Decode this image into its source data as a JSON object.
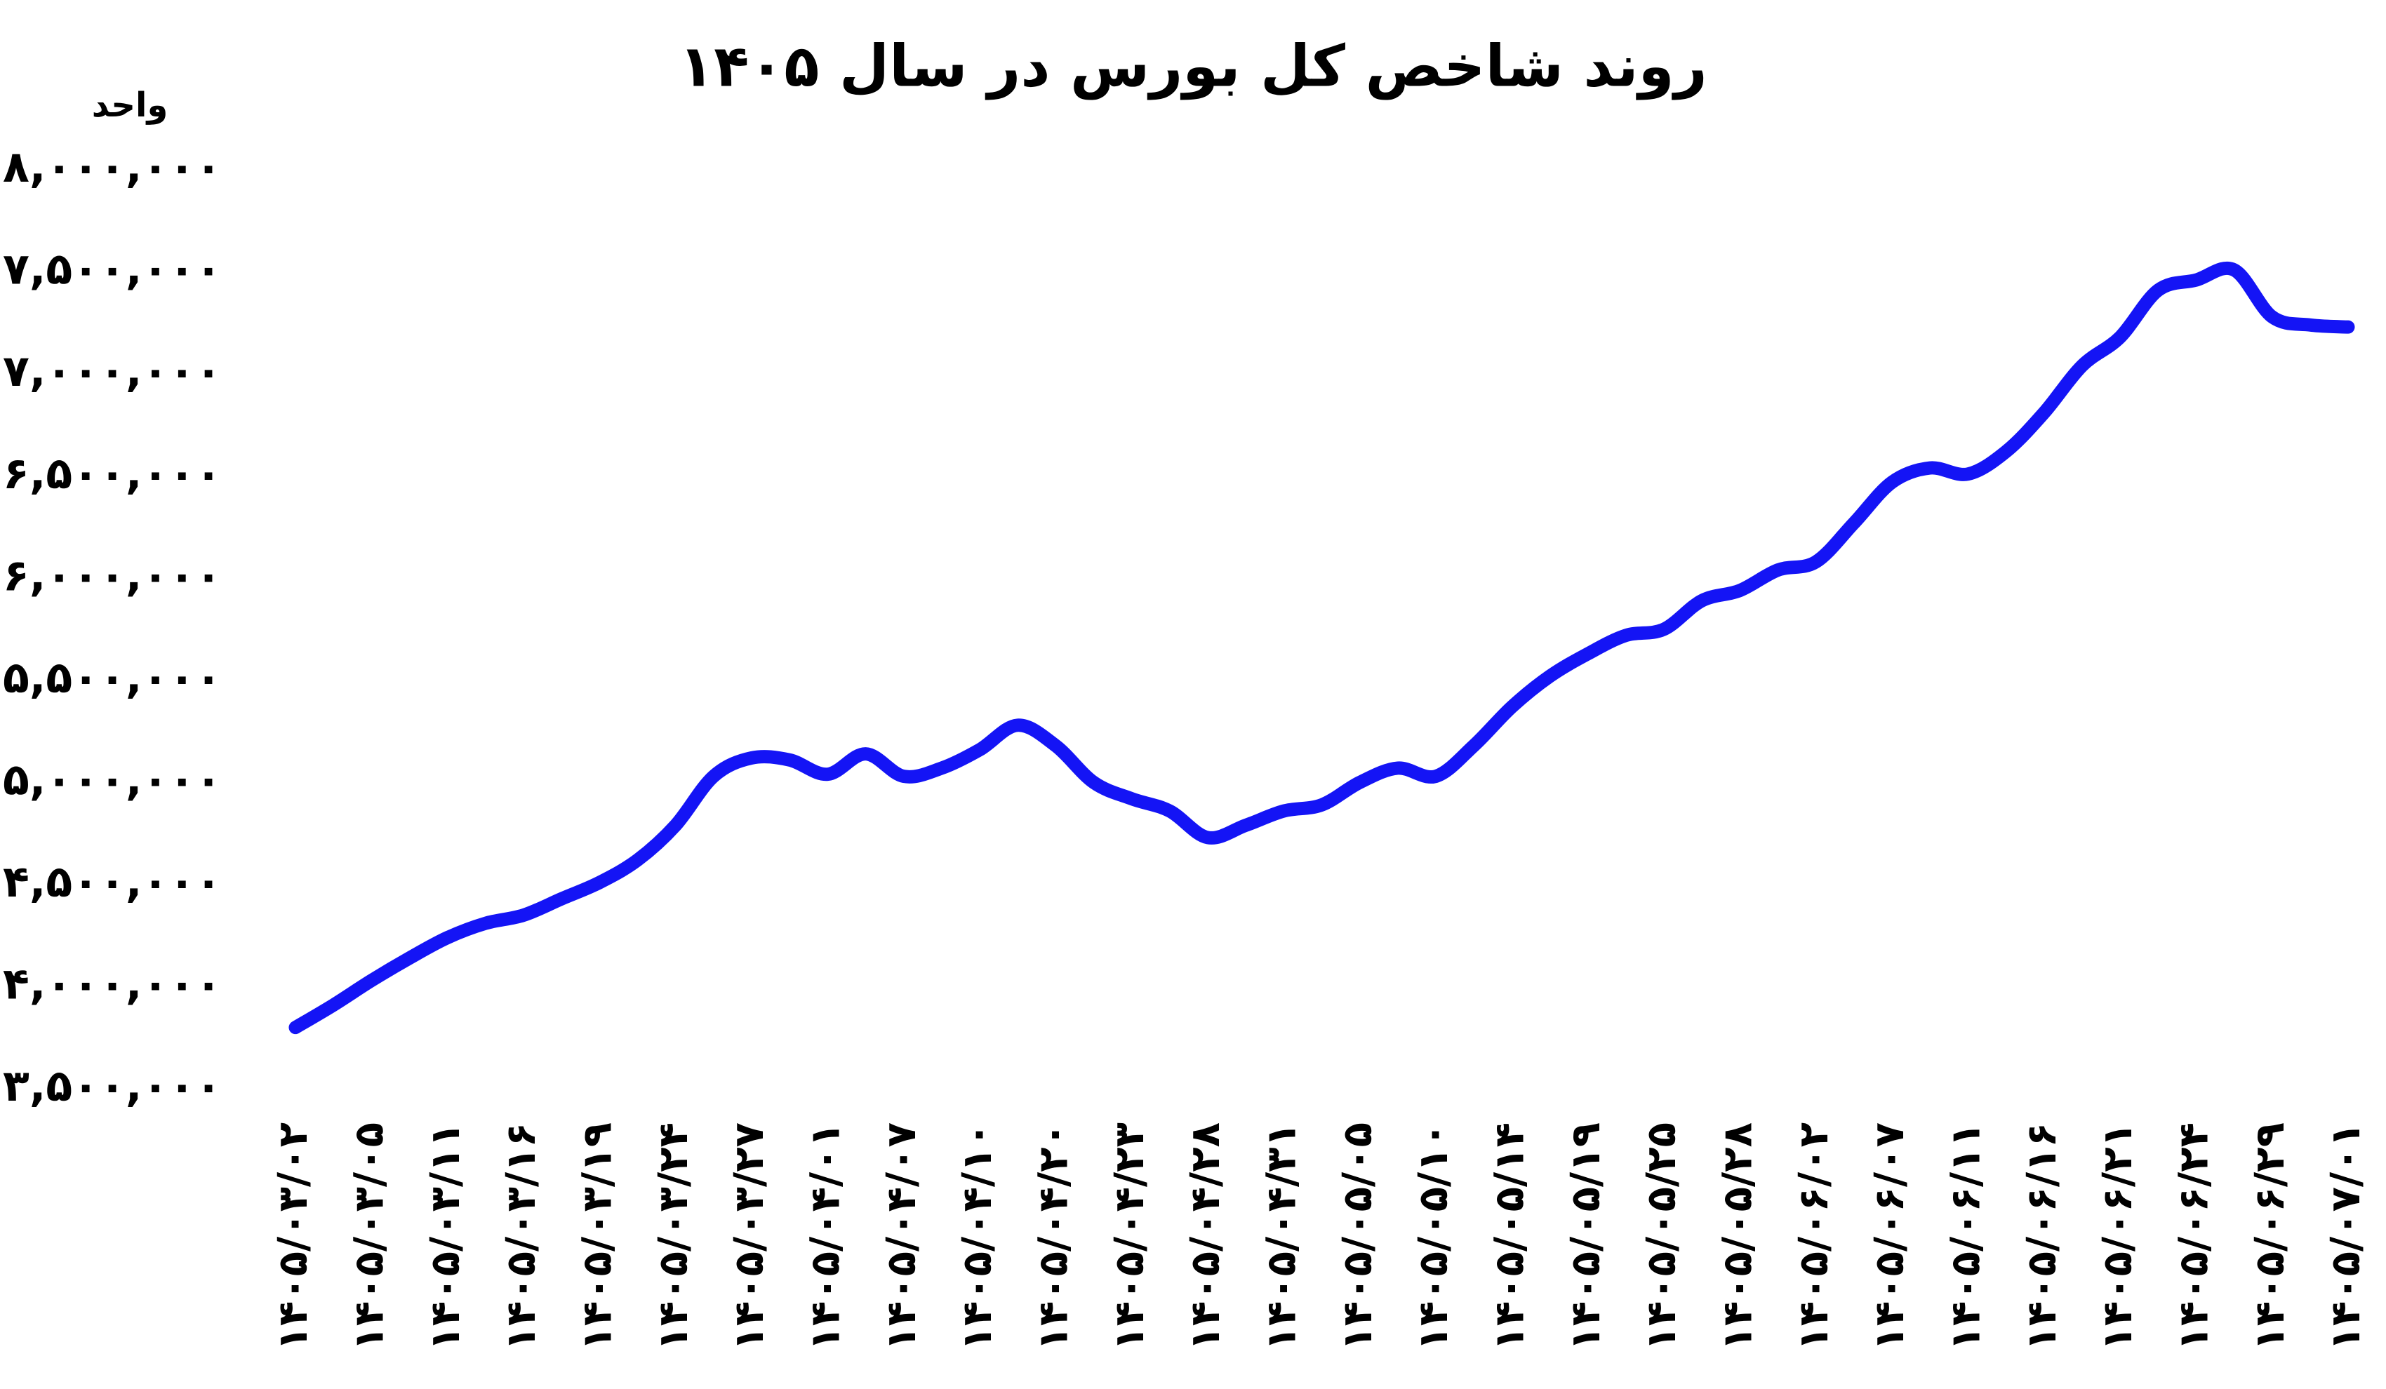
{
  "chart_data": {
    "type": "line",
    "title": "روند شاخص کل بورس در سال ۱۴۰۵",
    "y_label": "واحد",
    "categories": [
      "۱۴۰۵/۰۳/۰۲",
      null,
      "۱۴۰۵/۰۳/۰۵",
      null,
      "۱۴۰۵/۰۳/۱۱",
      null,
      "۱۴۰۵/۰۳/۱۶",
      null,
      "۱۴۰۵/۰۳/۱۹",
      null,
      "۱۴۰۵/۰۳/۲۴",
      null,
      "۱۴۰۵/۰۳/۲۷",
      null,
      "۱۴۰۵/۰۴/۰۱",
      null,
      "۱۴۰۵/۰۴/۰۷",
      null,
      "۱۴۰۵/۰۴/۱۰",
      null,
      "۱۴۰۵/۰۴/۲۰",
      null,
      "۱۴۰۵/۰۴/۲۳",
      null,
      "۱۴۰۵/۰۴/۲۸",
      null,
      "۱۴۰۵/۰۴/۳۱",
      null,
      "۱۴۰۵/۰۵/۰۵",
      null,
      "۱۴۰۵/۰۵/۱۰",
      null,
      "۱۴۰۵/۰۵/۱۴",
      null,
      "۱۴۰۵/۰۵/۱۹",
      null,
      "۱۴۰۵/۰۵/۲۵",
      null,
      "۱۴۰۵/۰۵/۲۸",
      null,
      "۱۴۰۵/۰۶/۰۲",
      null,
      "۱۴۰۵/۰۶/۰۷",
      null,
      "۱۴۰۵/۰۶/۱۱",
      null,
      "۱۴۰۵/۰۶/۱۶",
      null,
      "۱۴۰۵/۰۶/۲۱",
      null,
      "۱۴۰۵/۰۶/۲۴",
      null,
      "۱۴۰۵/۰۶/۲۹",
      null,
      "۱۴۰۵/۰۷/۰۱"
    ],
    "values": [
      3800000,
      3910000,
      4030000,
      4140000,
      4240000,
      4310000,
      4350000,
      4430000,
      4510000,
      4620000,
      4790000,
      5030000,
      5120000,
      5110000,
      5040000,
      5140000,
      5030000,
      5070000,
      5160000,
      5280000,
      5180000,
      5000000,
      4920000,
      4860000,
      4730000,
      4790000,
      4860000,
      4890000,
      5000000,
      5070000,
      5030000,
      5180000,
      5370000,
      5520000,
      5630000,
      5720000,
      5750000,
      5890000,
      5940000,
      6040000,
      6080000,
      6270000,
      6470000,
      6540000,
      6510000,
      6620000,
      6810000,
      7040000,
      7180000,
      7410000,
      7460000,
      7510000,
      7280000,
      7240000,
      7230000
    ],
    "color": "#1414f5",
    "ylim": [
      3500000,
      8000000
    ],
    "yticks": [
      {
        "value": 3500000,
        "label": "۳,۵۰۰,۰۰۰"
      },
      {
        "value": 4000000,
        "label": "۴,۰۰۰,۰۰۰"
      },
      {
        "value": 4500000,
        "label": "۴,۵۰۰,۰۰۰"
      },
      {
        "value": 5000000,
        "label": "۵,۰۰۰,۰۰۰"
      },
      {
        "value": 5500000,
        "label": "۵,۵۰۰,۰۰۰"
      },
      {
        "value": 6000000,
        "label": "۶,۰۰۰,۰۰۰"
      },
      {
        "value": 6500000,
        "label": "۶,۵۰۰,۰۰۰"
      },
      {
        "value": 7000000,
        "label": "۷,۰۰۰,۰۰۰"
      },
      {
        "value": 7500000,
        "label": "۷,۵۰۰,۰۰۰"
      },
      {
        "value": 8000000,
        "label": "۸,۰۰۰,۰۰۰"
      }
    ],
    "grid": false
  }
}
